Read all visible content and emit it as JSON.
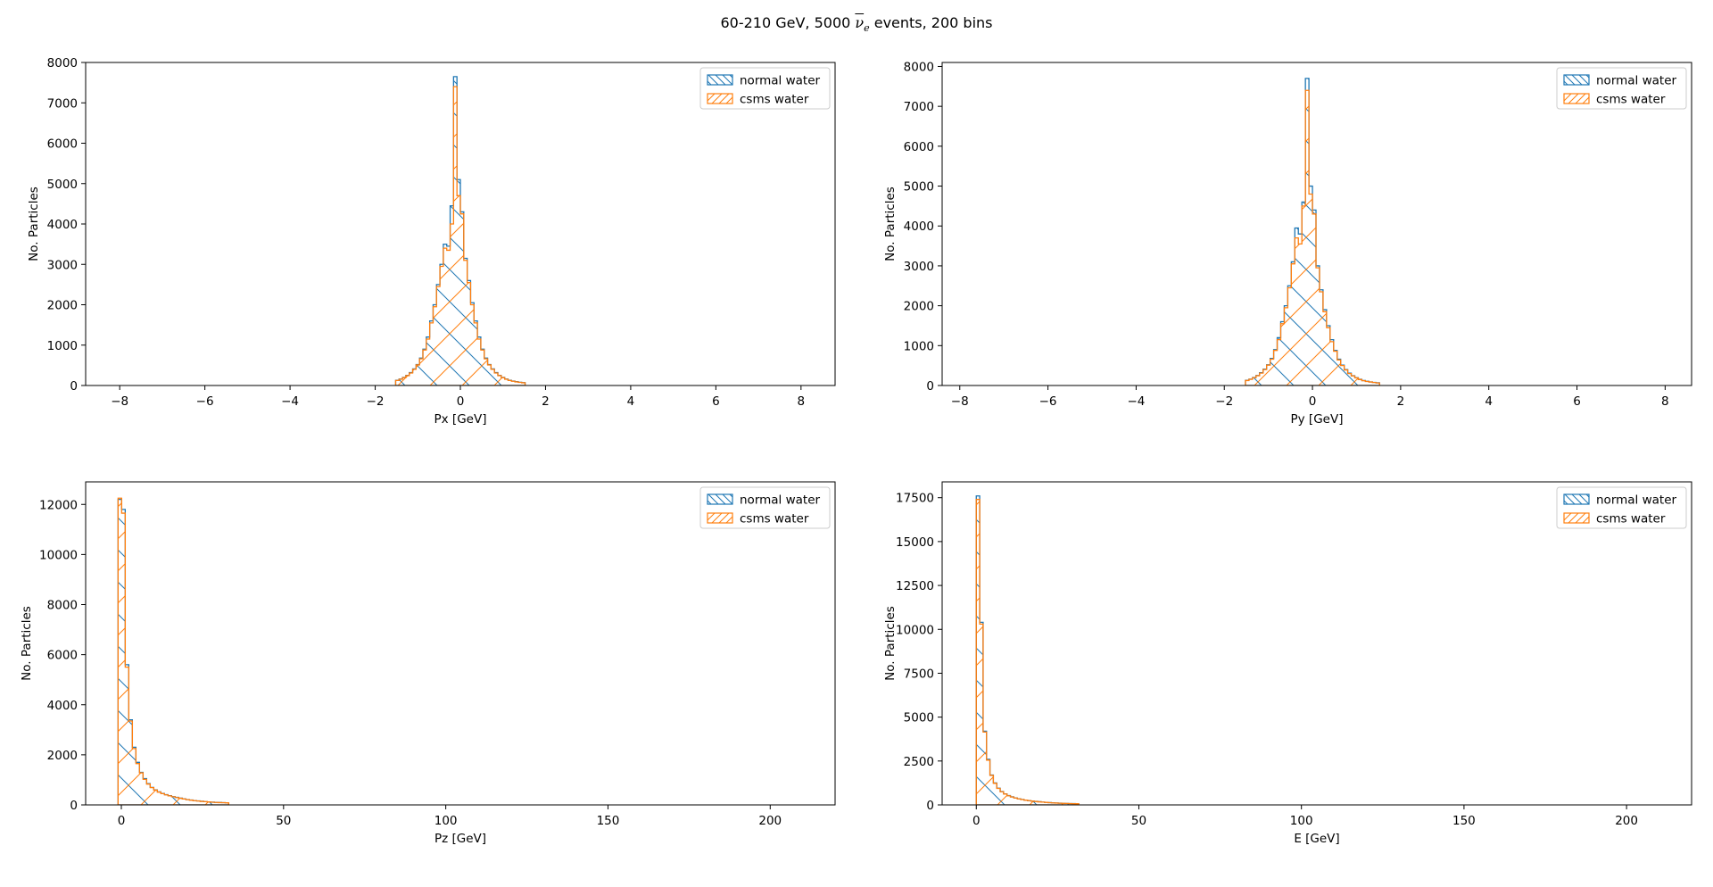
{
  "figure": {
    "title_pre": "60-210 GeV, 5000 ",
    "title_nu": "ν",
    "title_sub": "e",
    "title_post": " events, 200 bins"
  },
  "colors": {
    "normal": "#1f77b4",
    "csms": "#ff7f0e"
  },
  "chart_data": [
    {
      "type": "histogram",
      "id": "px",
      "xlabel": "Px [GeV]",
      "ylabel": "No. Particles",
      "xlim": [
        -8.8,
        8.8
      ],
      "ylim": [
        0,
        8000
      ],
      "xticks": [
        -8,
        -6,
        -4,
        -2,
        0,
        2,
        4,
        6,
        8
      ],
      "yticks": [
        0,
        1000,
        2000,
        3000,
        4000,
        5000,
        6000,
        7000,
        8000
      ],
      "legend": "upper right",
      "grid": false,
      "series": [
        {
          "name": "normal water",
          "color": "#1f77b4",
          "hatch": "backslash",
          "bins": [
            -1.52,
            -1.44,
            -1.36,
            -1.28,
            -1.2,
            -1.12,
            -1.04,
            -0.96,
            -0.88,
            -0.8,
            -0.72,
            -0.64,
            -0.56,
            -0.48,
            -0.4,
            -0.32,
            -0.24,
            -0.16,
            -0.08,
            0,
            0.08,
            0.16,
            0.24,
            0.32,
            0.4,
            0.48,
            0.56,
            0.64,
            0.72,
            0.8,
            0.88,
            0.96,
            1.04,
            1.12,
            1.2,
            1.28,
            1.36,
            1.44,
            1.52
          ],
          "counts": [
            130,
            160,
            200,
            250,
            320,
            410,
            520,
            680,
            900,
            1200,
            1600,
            2000,
            2500,
            3000,
            3500,
            3450,
            4450,
            7650,
            5100,
            4300,
            3150,
            2600,
            2050,
            1600,
            1200,
            900,
            680,
            520,
            410,
            320,
            250,
            200,
            160,
            130,
            110,
            95,
            80,
            70
          ]
        },
        {
          "name": "csms water",
          "color": "#ff7f0e",
          "hatch": "slash",
          "bins": [
            -1.52,
            -1.44,
            -1.36,
            -1.28,
            -1.2,
            -1.12,
            -1.04,
            -0.96,
            -0.88,
            -0.8,
            -0.72,
            -0.64,
            -0.56,
            -0.48,
            -0.4,
            -0.32,
            -0.24,
            -0.16,
            -0.08,
            0,
            0.08,
            0.16,
            0.24,
            0.32,
            0.4,
            0.48,
            0.56,
            0.64,
            0.72,
            0.8,
            0.88,
            0.96,
            1.04,
            1.12,
            1.2,
            1.28,
            1.36,
            1.44,
            1.52
          ],
          "counts": [
            125,
            155,
            195,
            245,
            310,
            400,
            510,
            660,
            880,
            1150,
            1550,
            1950,
            2450,
            2950,
            3400,
            3350,
            4000,
            7400,
            4700,
            4250,
            3100,
            2550,
            2000,
            1550,
            1150,
            880,
            660,
            510,
            400,
            310,
            245,
            195,
            155,
            125,
            105,
            90,
            78,
            68
          ]
        }
      ]
    },
    {
      "type": "histogram",
      "id": "py",
      "xlabel": "Py [GeV]",
      "ylabel": "No. Particles",
      "xlim": [
        -8.4,
        8.6
      ],
      "ylim": [
        0,
        8100
      ],
      "xticks": [
        -8,
        -6,
        -4,
        -2,
        0,
        2,
        4,
        6,
        8
      ],
      "yticks": [
        0,
        1000,
        2000,
        3000,
        4000,
        5000,
        6000,
        7000,
        8000
      ],
      "legend": "upper right",
      "grid": false,
      "series": [
        {
          "name": "normal water",
          "color": "#1f77b4",
          "hatch": "backslash",
          "bins": [
            -1.52,
            -1.44,
            -1.36,
            -1.28,
            -1.2,
            -1.12,
            -1.04,
            -0.96,
            -0.88,
            -0.8,
            -0.72,
            -0.64,
            -0.56,
            -0.48,
            -0.4,
            -0.32,
            -0.24,
            -0.16,
            -0.08,
            0,
            0.08,
            0.16,
            0.24,
            0.32,
            0.4,
            0.48,
            0.56,
            0.64,
            0.72,
            0.8,
            0.88,
            0.96,
            1.04,
            1.12,
            1.2,
            1.28,
            1.36,
            1.44,
            1.52
          ],
          "counts": [
            130,
            160,
            200,
            250,
            320,
            410,
            520,
            680,
            900,
            1200,
            1600,
            2000,
            2500,
            3100,
            3950,
            3800,
            4600,
            7700,
            5000,
            4400,
            3000,
            2400,
            1900,
            1500,
            1150,
            880,
            660,
            510,
            400,
            310,
            245,
            195,
            155,
            125,
            105,
            90,
            78,
            68
          ]
        },
        {
          "name": "csms water",
          "color": "#ff7f0e",
          "hatch": "slash",
          "bins": [
            -1.52,
            -1.44,
            -1.36,
            -1.28,
            -1.2,
            -1.12,
            -1.04,
            -0.96,
            -0.88,
            -0.8,
            -0.72,
            -0.64,
            -0.56,
            -0.48,
            -0.4,
            -0.32,
            -0.24,
            -0.16,
            -0.08,
            0,
            0.08,
            0.16,
            0.24,
            0.32,
            0.4,
            0.48,
            0.56,
            0.64,
            0.72,
            0.8,
            0.88,
            0.96,
            1.04,
            1.12,
            1.2,
            1.28,
            1.36,
            1.44,
            1.52
          ],
          "counts": [
            125,
            155,
            195,
            245,
            310,
            400,
            510,
            660,
            880,
            1150,
            1550,
            1950,
            2450,
            3050,
            3700,
            3550,
            4500,
            7400,
            4800,
            4300,
            2950,
            2350,
            1850,
            1450,
            1100,
            860,
            640,
            500,
            390,
            300,
            240,
            190,
            150,
            120,
            100,
            88,
            75,
            65
          ]
        }
      ]
    },
    {
      "type": "histogram",
      "id": "pz",
      "xlabel": "Pz [GeV]",
      "ylabel": "No. Particles",
      "xlim": [
        -11,
        220
      ],
      "ylim": [
        0,
        12900
      ],
      "xticks": [
        0,
        50,
        100,
        150,
        200
      ],
      "yticks": [
        0,
        2000,
        4000,
        6000,
        8000,
        10000,
        12000
      ],
      "legend": "upper right",
      "grid": false,
      "series": [
        {
          "name": "normal water",
          "color": "#1f77b4",
          "hatch": "backslash",
          "bins": [
            -1,
            0.1,
            1.2,
            2.3,
            3.4,
            4.5,
            5.6,
            6.7,
            7.8,
            8.9,
            10,
            11.1,
            12.2,
            13.3,
            14.4,
            15.5,
            16.6,
            17.7,
            18.8,
            19.9,
            21,
            22.1,
            23.2,
            24.3,
            25.4,
            26.5,
            27.6,
            28.7,
            29.8,
            30.9,
            32,
            33.1
          ],
          "counts": [
            12200,
            11800,
            5600,
            3400,
            2300,
            1700,
            1300,
            1050,
            850,
            700,
            600,
            520,
            460,
            410,
            370,
            330,
            300,
            270,
            240,
            215,
            195,
            175,
            160,
            145,
            130,
            120,
            110,
            100,
            95,
            90,
            85
          ]
        },
        {
          "name": "csms water",
          "color": "#ff7f0e",
          "hatch": "slash",
          "bins": [
            -1,
            0.1,
            1.2,
            2.3,
            3.4,
            4.5,
            5.6,
            6.7,
            7.8,
            8.9,
            10,
            11.1,
            12.2,
            13.3,
            14.4,
            15.5,
            16.6,
            17.7,
            18.8,
            19.9,
            21,
            22.1,
            23.2,
            24.3,
            25.4,
            26.5,
            27.6,
            28.7,
            29.8,
            30.9,
            32,
            33.1
          ],
          "counts": [
            12250,
            11650,
            5500,
            3350,
            2250,
            1650,
            1280,
            1020,
            830,
            690,
            590,
            510,
            450,
            400,
            360,
            325,
            295,
            265,
            235,
            210,
            190,
            170,
            155,
            140,
            128,
            118,
            108,
            98,
            92,
            88,
            82
          ]
        }
      ]
    },
    {
      "type": "histogram",
      "id": "e",
      "xlabel": "E [GeV]",
      "ylabel": "No. Particles",
      "xlim": [
        -10.5,
        220
      ],
      "ylim": [
        0,
        18400
      ],
      "xticks": [
        0,
        50,
        100,
        150,
        200
      ],
      "yticks": [
        0,
        2500,
        5000,
        7500,
        10000,
        12500,
        15000,
        17500
      ],
      "legend": "upper right",
      "grid": false,
      "series": [
        {
          "name": "normal water",
          "color": "#1f77b4",
          "hatch": "backslash",
          "bins": [
            0,
            1.05,
            2.1,
            3.15,
            4.2,
            5.25,
            6.3,
            7.35,
            8.4,
            9.45,
            10.5,
            11.55,
            12.6,
            13.65,
            14.7,
            15.75,
            16.8,
            17.85,
            18.9,
            19.95,
            21,
            22.05,
            23.1,
            24.15,
            25.2,
            26.25,
            27.3,
            28.35,
            29.4,
            30.45,
            31.5
          ],
          "counts": [
            17600,
            10400,
            4200,
            2600,
            1700,
            1250,
            950,
            760,
            630,
            530,
            460,
            400,
            350,
            310,
            275,
            245,
            220,
            200,
            180,
            160,
            145,
            130,
            118,
            108,
            98,
            90,
            84,
            78,
            72,
            68
          ]
        },
        {
          "name": "csms water",
          "color": "#ff7f0e",
          "hatch": "slash",
          "bins": [
            0,
            1.05,
            2.1,
            3.15,
            4.2,
            5.25,
            6.3,
            7.35,
            8.4,
            9.45,
            10.5,
            11.55,
            12.6,
            13.65,
            14.7,
            15.75,
            16.8,
            17.85,
            18.9,
            19.95,
            21,
            22.05,
            23.1,
            24.15,
            25.2,
            26.25,
            27.3,
            28.35,
            29.4,
            30.45,
            31.5
          ],
          "counts": [
            17400,
            10300,
            4150,
            2550,
            1680,
            1230,
            940,
            750,
            620,
            520,
            450,
            395,
            345,
            305,
            270,
            240,
            215,
            195,
            175,
            158,
            142,
            128,
            116,
            106,
            96,
            88,
            82,
            76,
            70,
            66
          ]
        }
      ]
    }
  ]
}
